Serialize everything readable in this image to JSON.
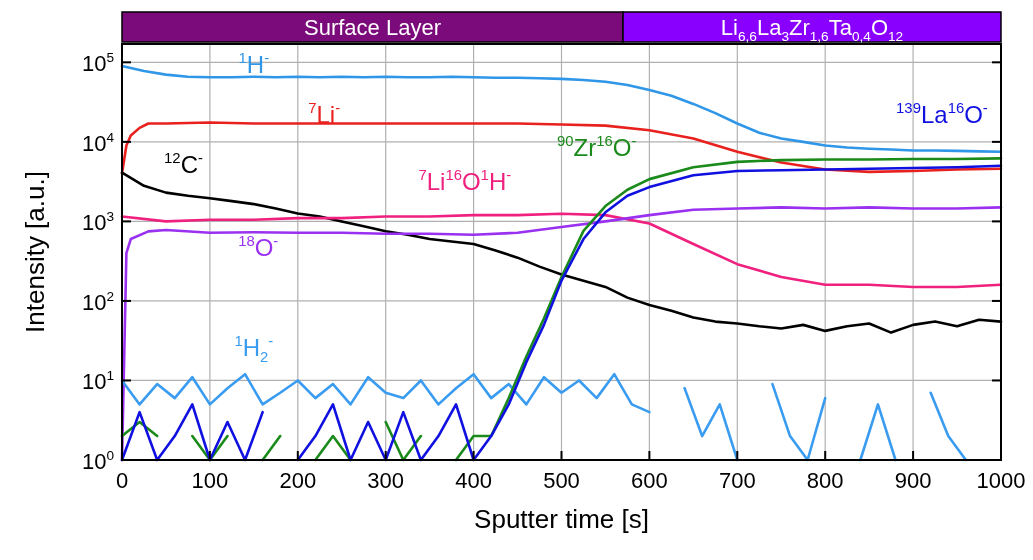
{
  "chart_data": [
    {
      "type": "bar",
      "orientation": "horizontal",
      "stacked": true,
      "categories": [
        null
      ],
      "xlim": [
        0,
        1000
      ],
      "tick_labels": false,
      "series": [
        {
          "name": "Surface Layer",
          "color": "#7b0a7b",
          "values": [
            570
          ]
        },
        {
          "name": "Li$_{6,6}$La$_{3}$Zr$_{1,6}$Ta$_{0,4}$O$_{12}$",
          "color": "#8a00ff",
          "values": [
            430
          ]
        }
      ]
    },
    {
      "type": "line",
      "xlabel": "Sputter time [s]",
      "ylabel": "Intensity [a.u.]",
      "log": "y",
      "grid": true,
      "marker": "none",
      "line_style": "solid",
      "xlim": [
        0,
        1000
      ],
      "xticks": [
        0,
        100,
        200,
        300,
        400,
        500,
        600,
        700,
        800,
        900,
        1000
      ],
      "ylim": [
        1,
        170000
      ],
      "yticks": [
        {
          "value": 1,
          "label": "10$^{0}$"
        },
        {
          "value": 10,
          "label": "10$^{1}$"
        },
        {
          "value": 100,
          "label": "10$^{2}$"
        },
        {
          "value": 1000,
          "label": "10$^{3}$"
        },
        {
          "value": 10000,
          "label": "10$^{4}$"
        },
        {
          "value": 100000,
          "label": "10$^{5}$"
        }
      ],
      "series": [
        {
          "name": "$^{1}$H$^{-}$",
          "color": "#2f96e8",
          "x": [
            0,
            25,
            50,
            75,
            100,
            125,
            150,
            175,
            200,
            225,
            250,
            275,
            300,
            325,
            350,
            375,
            400,
            425,
            450,
            475,
            500,
            525,
            550,
            575,
            600,
            625,
            650,
            675,
            700,
            725,
            750,
            775,
            800,
            825,
            850,
            875,
            900,
            925,
            950,
            975,
            1000
          ],
          "values": [
            90000,
            78000,
            70000,
            66000,
            65000,
            65000,
            66000,
            65000,
            66000,
            65000,
            66000,
            65000,
            66000,
            65000,
            65000,
            66000,
            65000,
            64000,
            64000,
            63000,
            62000,
            60000,
            57000,
            52000,
            45000,
            38000,
            30000,
            23000,
            17000,
            13000,
            11000,
            10000,
            9000,
            8500,
            8200,
            8000,
            7800,
            7800,
            7700,
            7600,
            7500
          ]
        },
        {
          "name": "$^{7}$Li$^{-}$",
          "color": "#e8201e",
          "x": [
            0,
            5,
            10,
            20,
            30,
            50,
            100,
            150,
            200,
            250,
            300,
            350,
            400,
            450,
            500,
            550,
            600,
            650,
            700,
            750,
            800,
            850,
            900,
            950,
            1000
          ],
          "values": [
            4000,
            9000,
            12000,
            15000,
            17000,
            17000,
            17500,
            17000,
            17000,
            17000,
            17000,
            17000,
            17000,
            17000,
            16500,
            16000,
            14000,
            11000,
            7500,
            5500,
            4500,
            4200,
            4300,
            4500,
            4600
          ]
        },
        {
          "name": "$^{12}$C$^{-}$",
          "color": "#000000",
          "x": [
            0,
            25,
            50,
            75,
            100,
            125,
            150,
            175,
            200,
            225,
            250,
            275,
            300,
            325,
            350,
            375,
            400,
            425,
            450,
            475,
            500,
            525,
            550,
            575,
            600,
            625,
            650,
            675,
            700,
            725,
            750,
            775,
            800,
            825,
            850,
            875,
            900,
            925,
            950,
            975,
            1000
          ],
          "values": [
            4100,
            2800,
            2300,
            2100,
            1950,
            1800,
            1650,
            1450,
            1260,
            1150,
            1000,
            870,
            750,
            680,
            600,
            560,
            520,
            430,
            350,
            270,
            215,
            180,
            150,
            110,
            89,
            75,
            62,
            55,
            52,
            48,
            45,
            50,
            42,
            48,
            52,
            40,
            50,
            55,
            48,
            58,
            55
          ]
        },
        {
          "name": "$^{7}$Li$^{16}$O$^{1}$H$^{-}$",
          "color": "#f0207f",
          "x": [
            0,
            50,
            100,
            150,
            200,
            250,
            300,
            350,
            400,
            450,
            500,
            550,
            600,
            650,
            700,
            750,
            800,
            850,
            900,
            950,
            1000
          ],
          "values": [
            1150,
            1000,
            1050,
            1050,
            1100,
            1100,
            1150,
            1150,
            1200,
            1200,
            1250,
            1200,
            940,
            520,
            290,
            200,
            160,
            160,
            150,
            150,
            160
          ]
        },
        {
          "name": "$^{18}$O$^{-}$",
          "color": "#9a30f0",
          "x": [
            0,
            5,
            10,
            30,
            50,
            100,
            150,
            200,
            250,
            300,
            350,
            400,
            450,
            500,
            550,
            600,
            650,
            700,
            750,
            800,
            850,
            900,
            950,
            1000
          ],
          "values": [
            1,
            400,
            600,
            750,
            780,
            720,
            730,
            720,
            720,
            700,
            700,
            680,
            720,
            850,
            1000,
            1200,
            1400,
            1450,
            1500,
            1450,
            1500,
            1450,
            1450,
            1500
          ]
        },
        {
          "name": "$^{1}$H$_{2}$$^{-}$",
          "color": "#3a9cf0",
          "x": [
            0,
            20,
            40,
            60,
            80,
            100,
            120,
            140,
            160,
            180,
            200,
            220,
            240,
            260,
            280,
            300,
            320,
            340,
            360,
            380,
            400,
            420,
            440,
            460,
            480,
            500,
            520,
            540,
            560,
            580,
            600,
            620,
            640,
            660,
            680,
            700,
            720,
            740,
            760,
            780,
            800,
            820,
            840,
            860,
            880,
            900,
            920,
            940,
            960
          ],
          "values": [
            10,
            5,
            9,
            6,
            11,
            5,
            8,
            12,
            5,
            7,
            10,
            6,
            9,
            5,
            11,
            7,
            6,
            10,
            5,
            8,
            12,
            6,
            9,
            5,
            11,
            7,
            10,
            6,
            12,
            5,
            4,
            null,
            8,
            2,
            5,
            1,
            null,
            9,
            2,
            1,
            6,
            null,
            1,
            5,
            1,
            null,
            7,
            2,
            1
          ]
        },
        {
          "name": "$^{90}$Zr$^{16}$O$^{-}$",
          "color": "#1a8a1a",
          "x": [
            0,
            20,
            40,
            60,
            80,
            100,
            120,
            140,
            160,
            180,
            200,
            220,
            240,
            260,
            280,
            300,
            320,
            340,
            360,
            380,
            400,
            420,
            440,
            460,
            480,
            500,
            525,
            550,
            575,
            600,
            650,
            700,
            750,
            800,
            850,
            900,
            950,
            1000
          ],
          "values": [
            2,
            3,
            2,
            null,
            2,
            1,
            2,
            null,
            1,
            2,
            null,
            1,
            2,
            1,
            null,
            3,
            1,
            2,
            null,
            1,
            2,
            2,
            6,
            20,
            60,
            200,
            760,
            1560,
            2500,
            3400,
            4800,
            5600,
            5900,
            6000,
            6000,
            6100,
            6100,
            6200
          ]
        },
        {
          "name": "$^{139}$La$^{16}$O$^{-}$",
          "color": "#1010e0",
          "x": [
            0,
            20,
            40,
            60,
            80,
            100,
            120,
            140,
            160,
            180,
            200,
            220,
            240,
            260,
            280,
            300,
            320,
            340,
            360,
            380,
            400,
            420,
            440,
            460,
            480,
            500,
            525,
            550,
            575,
            600,
            650,
            700,
            750,
            800,
            850,
            900,
            950,
            1000
          ],
          "values": [
            1,
            4,
            1,
            2,
            5,
            1,
            3,
            1,
            4,
            null,
            1,
            2,
            5,
            1,
            3,
            1,
            4,
            1,
            2,
            5,
            1,
            2,
            5,
            17,
            50,
            180,
            600,
            1300,
            2100,
            2700,
            3800,
            4300,
            4400,
            4500,
            4600,
            4700,
            4800,
            5000
          ]
        }
      ]
    }
  ]
}
